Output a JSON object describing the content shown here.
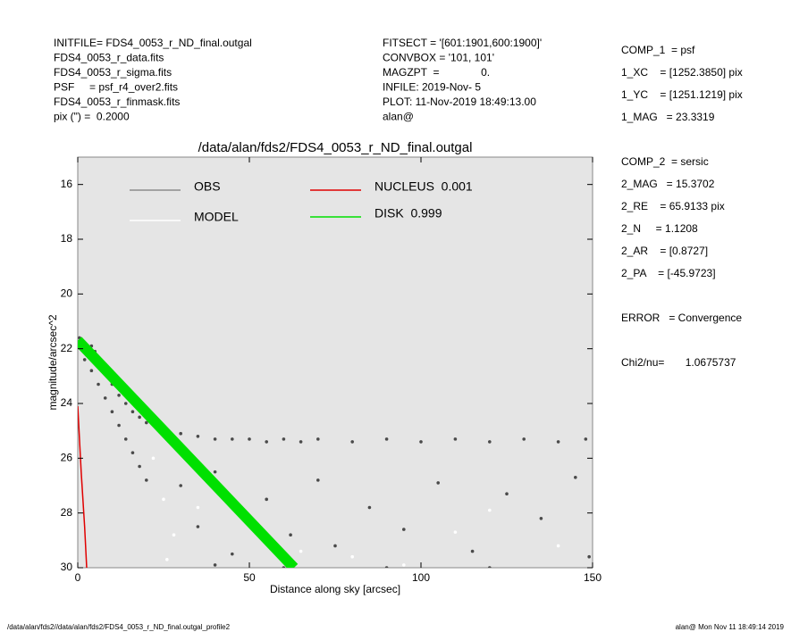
{
  "header": {
    "left": [
      "INITFILE= FDS4_0053_r_ND_final.outgal",
      "FDS4_0053_r_data.fits",
      "FDS4_0053_r_sigma.fits",
      "PSF     = psf_r4_over2.fits",
      "FDS4_0053_r_finmask.fits",
      "pix (\") =  0.2000"
    ],
    "middle": [
      "FITSECT = '[601:1901,600:1900]'",
      "CONVBOX = '101, 101'",
      "MAGZPT  =              0.",
      "INFILE: 2019-Nov- 5",
      "PLOT: 11-Nov-2019 18:49:13.00",
      "alan@"
    ]
  },
  "side_panel": [
    "COMP_1  = psf",
    "1_XC    = [1252.3850] pix",
    "1_YC    = [1251.1219] pix",
    "1_MAG   = 23.3319",
    "",
    "COMP_2  = sersic",
    "2_MAG   = 15.3702",
    "2_RE    = 65.9133 pix",
    "2_N     = 1.1208",
    "2_AR    = [0.8727]",
    "2_PA    = [-45.9723]",
    "",
    "ERROR   = Convergence",
    "",
    "Chi2/nu=       1.0675737"
  ],
  "footer": {
    "left": "/data/alan/fds2//data/alan/fds2/FDS4_0053_r_ND_final.outgal_profile2",
    "right": "alan@  Mon Nov 11 18:49:14 2019"
  },
  "chart_data": {
    "type": "scatter",
    "title": "/data/alan/fds2/FDS4_0053_r_ND_final.outgal",
    "x_label": "Distance along sky [arcsec]",
    "y_label": "magnitude/arcsec^2",
    "xlim": [
      0,
      150
    ],
    "xticks": [
      0,
      50,
      100,
      150
    ],
    "ylim": [
      15,
      30
    ],
    "yticks": [
      16,
      18,
      20,
      22,
      24,
      26,
      28,
      30
    ],
    "y_inverted": true,
    "grid": false,
    "series": [
      {
        "name": "OBS",
        "color": "#4a4a4a",
        "legend_color": "#8c8c8c",
        "kind": "points",
        "x": [
          0.5,
          1,
          2,
          3,
          4,
          5,
          6,
          8,
          10,
          12,
          14,
          16,
          18,
          20,
          23,
          26,
          30,
          35,
          40,
          45,
          50,
          55,
          60,
          65,
          70,
          80,
          90,
          100,
          110,
          120,
          130,
          140,
          148,
          2,
          4,
          6,
          8,
          10,
          12,
          14,
          16,
          18,
          20,
          30,
          35,
          40,
          45,
          55,
          62,
          70,
          75,
          85,
          95,
          105,
          115,
          125,
          135,
          145,
          149,
          60,
          90,
          120,
          40
        ],
        "values": [
          21.6,
          21.9,
          22.1,
          22.0,
          21.9,
          22.1,
          22.4,
          22.8,
          23.3,
          23.7,
          24.0,
          24.3,
          24.5,
          24.7,
          24.9,
          25.0,
          25.1,
          25.2,
          25.3,
          25.3,
          25.3,
          25.4,
          25.3,
          25.4,
          25.3,
          25.4,
          25.3,
          25.4,
          25.3,
          25.4,
          25.3,
          25.4,
          25.3,
          22.4,
          22.8,
          23.3,
          23.8,
          24.3,
          24.8,
          25.3,
          25.8,
          26.3,
          26.8,
          27.0,
          28.5,
          26.5,
          29.5,
          27.5,
          28.8,
          26.8,
          29.2,
          27.8,
          28.6,
          26.9,
          29.4,
          27.3,
          28.2,
          26.7,
          29.6,
          30.0,
          30.0,
          30.0,
          29.9
        ]
      },
      {
        "name": "MODEL",
        "color": "#ffffff",
        "legend_color": "#ffffff",
        "kind": "points",
        "x": [
          22,
          25,
          28,
          26,
          35,
          50,
          80,
          110,
          140,
          120,
          65,
          95
        ],
        "values": [
          26.0,
          27.5,
          28.8,
          29.7,
          27.8,
          28.4,
          29.6,
          28.7,
          29.2,
          27.9,
          29.4,
          29.9
        ]
      },
      {
        "name": "NUCLEUS  0.001",
        "color": "#e00000",
        "legend_color": "#e00000",
        "kind": "line",
        "x": [
          0,
          1,
          2,
          2.6
        ],
        "values": [
          24.1,
          26.5,
          28.5,
          30.0
        ]
      },
      {
        "name": "DISK  0.999",
        "color": "#00e000",
        "legend_color": "#00e000",
        "kind": "band",
        "x": [
          0,
          63
        ],
        "values": [
          21.7,
          30.0
        ]
      }
    ]
  }
}
